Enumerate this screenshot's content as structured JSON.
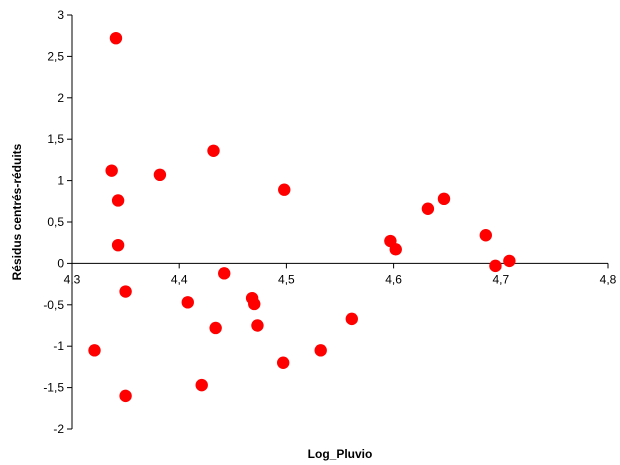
{
  "chart_data": {
    "type": "scatter",
    "title": "",
    "xlabel": "Log_Pluvio",
    "ylabel": "Résidus centrés-réduits",
    "xlim": [
      4.3,
      4.8
    ],
    "ylim": [
      -2,
      3
    ],
    "x_ticks": [
      "4,3",
      "4,4",
      "4,5",
      "4,6",
      "4,7",
      "4,8"
    ],
    "y_ticks": [
      "3",
      "2,5",
      "2",
      "1,5",
      "1",
      "0,5",
      "0",
      "-0,5",
      "-1",
      "-1,5",
      "-2"
    ],
    "grid": false,
    "legend": "none",
    "marker_color": "#ff0000",
    "series": [
      {
        "points": [
          [
            4.341,
            2.72
          ],
          [
            4.337,
            1.12
          ],
          [
            4.343,
            0.76
          ],
          [
            4.343,
            0.22
          ],
          [
            4.321,
            -1.05
          ],
          [
            4.35,
            -0.34
          ],
          [
            4.35,
            -1.6
          ],
          [
            4.382,
            1.07
          ],
          [
            4.408,
            -0.47
          ],
          [
            4.421,
            -1.47
          ],
          [
            4.432,
            1.36
          ],
          [
            4.434,
            -0.78
          ],
          [
            4.442,
            -0.12
          ],
          [
            4.468,
            -0.42
          ],
          [
            4.47,
            -0.49
          ],
          [
            4.473,
            -0.75
          ],
          [
            4.497,
            -1.2
          ],
          [
            4.498,
            0.89
          ],
          [
            4.532,
            -1.05
          ],
          [
            4.561,
            -0.67
          ],
          [
            4.597,
            0.27
          ],
          [
            4.602,
            0.17
          ],
          [
            4.632,
            0.66
          ],
          [
            4.647,
            0.78
          ],
          [
            4.686,
            0.34
          ],
          [
            4.695,
            -0.03
          ],
          [
            4.708,
            0.03
          ]
        ]
      }
    ]
  }
}
